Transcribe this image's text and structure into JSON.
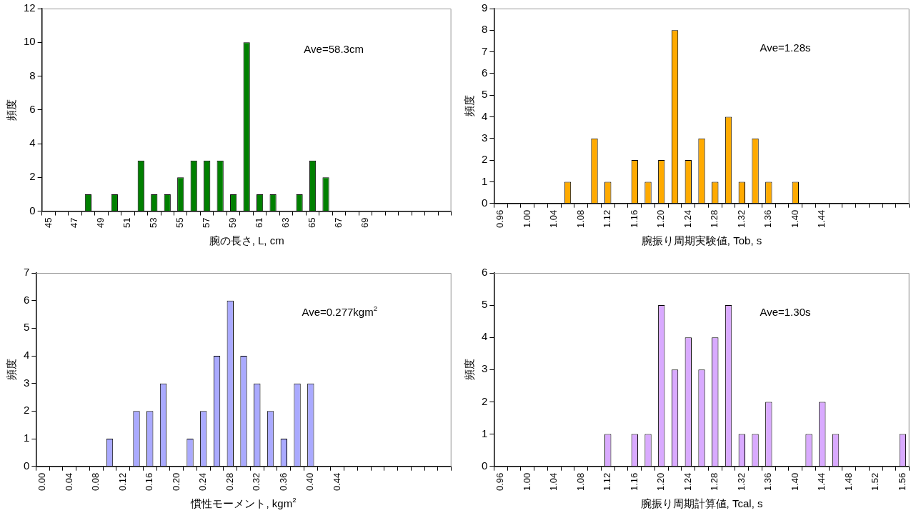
{
  "chart_data": [
    {
      "type": "bar",
      "ylabel": "頻度",
      "xlabel": "腕の長さ, L, cm",
      "annotations": [
        "Ave=58.3cm"
      ],
      "color": "#008000",
      "grid": false,
      "categories": [
        "45",
        null,
        "47",
        null,
        "49",
        null,
        "51",
        null,
        "53",
        null,
        "55",
        null,
        "57",
        null,
        "59",
        null,
        "61",
        null,
        "63",
        null,
        "65",
        null,
        "67",
        null,
        "69",
        null,
        null,
        null,
        null,
        null,
        null
      ],
      "values": [
        0,
        0,
        0,
        1,
        0,
        1,
        0,
        3,
        1,
        1,
        2,
        3,
        3,
        3,
        1,
        10,
        1,
        1,
        0,
        1,
        3,
        2,
        0,
        0,
        0,
        0,
        0,
        0,
        0,
        0,
        0
      ],
      "ylim": [
        0,
        12
      ],
      "yticks": [
        0,
        2,
        4,
        6,
        8,
        10,
        12
      ]
    },
    {
      "type": "bar",
      "ylabel": "頻度",
      "xlabel": "腕振り周期実験値, Tob, s",
      "annotations": [
        "Ave=1.28s"
      ],
      "color": "#ffaa00",
      "grid": false,
      "categories": [
        "0.96",
        null,
        "1.00",
        null,
        "1.04",
        null,
        "1.08",
        null,
        "1.12",
        null,
        "1.16",
        null,
        "1.20",
        null,
        "1.24",
        null,
        "1.28",
        null,
        "1.32",
        null,
        "1.36",
        null,
        "1.40",
        null,
        "1.44",
        null,
        null,
        null,
        null,
        null,
        null
      ],
      "values": [
        0,
        0,
        0,
        0,
        0,
        1,
        0,
        3,
        1,
        0,
        2,
        1,
        2,
        8,
        2,
        3,
        1,
        4,
        1,
        3,
        1,
        0,
        1,
        0,
        0,
        0,
        0,
        0,
        0,
        0,
        0
      ],
      "ylim": [
        0,
        9
      ],
      "yticks": [
        0,
        1,
        2,
        3,
        4,
        5,
        6,
        7,
        8,
        9
      ]
    },
    {
      "type": "bar",
      "ylabel": "頻度",
      "xlabel": "慣性モーメント, kgm$^{2}$",
      "annotations": [
        "Ave=0.277kgm$^{2}$"
      ],
      "color": "#aaaaff",
      "grid": false,
      "categories": [
        "0.00",
        null,
        "0.04",
        null,
        "0.08",
        null,
        "0.12",
        null,
        "0.16",
        null,
        "0.20",
        null,
        "0.24",
        null,
        "0.28",
        null,
        "0.32",
        null,
        "0.36",
        null,
        "0.40",
        null,
        "0.44",
        null,
        null,
        null,
        null,
        null,
        null,
        null,
        null
      ],
      "values": [
        0,
        0,
        0,
        0,
        0,
        1,
        0,
        2,
        2,
        3,
        0,
        1,
        2,
        4,
        6,
        4,
        3,
        2,
        1,
        3,
        3,
        0,
        0,
        0,
        0,
        0,
        0,
        0,
        0,
        0,
        0
      ],
      "ylim": [
        0,
        7
      ],
      "yticks": [
        0,
        1,
        2,
        3,
        4,
        5,
        6,
        7
      ]
    },
    {
      "type": "bar",
      "ylabel": "頻度",
      "xlabel": "腕振り周期計算値, Tcal, s",
      "annotations": [
        "Ave=1.30s"
      ],
      "color": "#d9aaff",
      "grid": false,
      "categories": [
        "0.96",
        null,
        "1.00",
        null,
        "1.04",
        null,
        "1.08",
        null,
        "1.12",
        null,
        "1.16",
        null,
        "1.20",
        null,
        "1.24",
        null,
        "1.28",
        null,
        "1.32",
        null,
        "1.36",
        null,
        "1.40",
        null,
        "1.44",
        null,
        "1.48",
        null,
        "1.52",
        null,
        "1.56"
      ],
      "values": [
        0,
        0,
        0,
        0,
        0,
        0,
        0,
        0,
        1,
        0,
        1,
        1,
        5,
        3,
        4,
        3,
        4,
        5,
        1,
        1,
        2,
        0,
        0,
        1,
        2,
        1,
        0,
        0,
        0,
        0,
        1
      ],
      "ylim": [
        0,
        6
      ],
      "yticks": [
        0,
        1,
        2,
        3,
        4,
        5,
        6
      ]
    }
  ]
}
